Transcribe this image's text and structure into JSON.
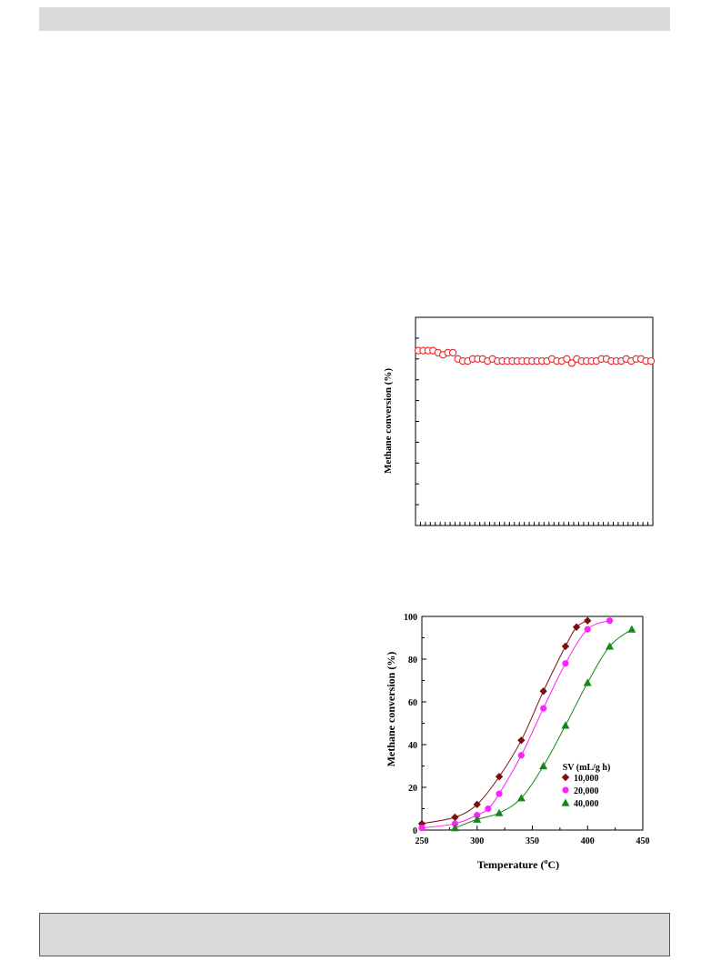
{
  "chart_data": [
    {
      "type": "scatter",
      "ylabel": "Methane conversion (%)",
      "xlabel": "",
      "ylim": [
        0,
        100
      ],
      "grid": false,
      "series": [
        {
          "color": "#e8262a",
          "marker": "open-circle",
          "y": [
            84,
            84,
            84,
            84,
            83,
            82,
            83,
            83,
            80,
            79,
            79,
            80,
            80,
            80,
            79,
            80,
            79,
            79,
            79,
            79,
            79,
            79,
            79,
            79,
            79,
            79,
            79,
            80,
            79,
            79,
            80,
            78,
            80,
            79,
            79,
            79,
            79,
            80,
            80,
            79,
            79,
            79,
            80,
            79,
            80,
            80,
            79,
            79
          ]
        }
      ]
    },
    {
      "type": "line",
      "xlabel": "Temperature (",
      "xlabel_sup": "o",
      "xlabel_end": "C)",
      "ylabel": "Methane conversion (%)",
      "xlim": [
        250,
        450
      ],
      "ylim": [
        0,
        100
      ],
      "x_ticks": [
        "250",
        "300",
        "350",
        "400",
        "450"
      ],
      "y_ticks": [
        "0",
        "20",
        "40",
        "60",
        "80",
        "100"
      ],
      "grid": false,
      "legend_title": "SV (mL/g h)",
      "legend_position": "bottom-right",
      "series": [
        {
          "name": "10,000",
          "color": "#7b1010",
          "marker": "diamond",
          "points": [
            [
              250,
              3
            ],
            [
              280,
              6
            ],
            [
              300,
              12
            ],
            [
              320,
              25
            ],
            [
              340,
              42
            ],
            [
              360,
              65
            ],
            [
              380,
              86
            ],
            [
              390,
              95
            ],
            [
              400,
              98
            ]
          ]
        },
        {
          "name": "20,000",
          "color": "#ff22ff",
          "marker": "circle",
          "points": [
            [
              250,
              1
            ],
            [
              280,
              3
            ],
            [
              300,
              7
            ],
            [
              310,
              10
            ],
            [
              320,
              17
            ],
            [
              340,
              35
            ],
            [
              360,
              57
            ],
            [
              380,
              78
            ],
            [
              400,
              94
            ],
            [
              420,
              98
            ]
          ]
        },
        {
          "name": "40,000",
          "color": "#128a12",
          "marker": "triangle",
          "points": [
            [
              280,
              1
            ],
            [
              300,
              5
            ],
            [
              320,
              8
            ],
            [
              340,
              15
            ],
            [
              360,
              30
            ],
            [
              380,
              49
            ],
            [
              400,
              69
            ],
            [
              420,
              86
            ],
            [
              440,
              94
            ]
          ]
        }
      ]
    }
  ]
}
